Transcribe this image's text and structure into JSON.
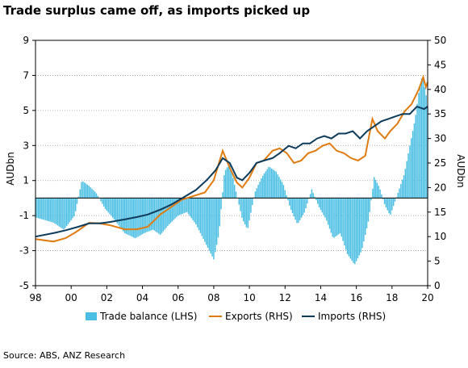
{
  "chart_data": {
    "type": "bar+line",
    "title": "Trade surplus came off, as imports picked up",
    "source": "Source: ABS, ANZ Research",
    "y_left": {
      "label": "AUDbn",
      "range": [
        -5,
        9
      ],
      "ticks": [
        9,
        7,
        5,
        3,
        1,
        -1,
        -3,
        -5
      ]
    },
    "y_right": {
      "label": "AUDbn",
      "range": [
        0,
        50
      ],
      "ticks": [
        50,
        45,
        40,
        35,
        30,
        25,
        20,
        15,
        10,
        5,
        0
      ]
    },
    "x": {
      "range": [
        1998,
        2020
      ],
      "ticks": [
        "98",
        "00",
        "02",
        "04",
        "06",
        "08",
        "10",
        "12",
        "14",
        "16",
        "18",
        "20"
      ]
    },
    "grid": true,
    "legend_position": "bottom",
    "colors": {
      "trade_balance": "#4BBFE3",
      "exports": "#E07B10",
      "imports": "#0D3B5C"
    },
    "series": [
      {
        "name": "Trade balance (LHS)",
        "type": "bar",
        "axis": "left",
        "points": [
          [
            1998.0,
            -1.1
          ],
          [
            1999.0,
            -1.4
          ],
          [
            1999.6,
            -1.8
          ],
          [
            2000.2,
            -1.0
          ],
          [
            2000.6,
            1.0
          ],
          [
            2001.0,
            0.7
          ],
          [
            2001.4,
            0.3
          ],
          [
            2001.9,
            -0.6
          ],
          [
            2002.4,
            -1.2
          ],
          [
            2003.0,
            -2.0
          ],
          [
            2003.6,
            -2.3
          ],
          [
            2004.1,
            -2.0
          ],
          [
            2004.6,
            -1.8
          ],
          [
            2005.0,
            -2.1
          ],
          [
            2005.5,
            -1.5
          ],
          [
            2006.0,
            -1.0
          ],
          [
            2006.5,
            -0.8
          ],
          [
            2007.0,
            -1.5
          ],
          [
            2007.5,
            -2.5
          ],
          [
            2008.0,
            -3.5
          ],
          [
            2008.3,
            -2.0
          ],
          [
            2008.6,
            1.5
          ],
          [
            2008.9,
            2.0
          ],
          [
            2009.2,
            0.6
          ],
          [
            2009.6,
            -1.2
          ],
          [
            2009.9,
            -1.8
          ],
          [
            2010.3,
            0.3
          ],
          [
            2010.7,
            1.2
          ],
          [
            2011.1,
            1.8
          ],
          [
            2011.5,
            1.5
          ],
          [
            2011.9,
            0.8
          ],
          [
            2012.3,
            -0.6
          ],
          [
            2012.7,
            -1.5
          ],
          [
            2013.1,
            -0.8
          ],
          [
            2013.5,
            0.5
          ],
          [
            2013.9,
            -0.5
          ],
          [
            2014.3,
            -1.2
          ],
          [
            2014.7,
            -2.3
          ],
          [
            2015.1,
            -2.0
          ],
          [
            2015.5,
            -3.2
          ],
          [
            2015.9,
            -3.8
          ],
          [
            2016.3,
            -3.0
          ],
          [
            2016.7,
            -1.2
          ],
          [
            2017.0,
            1.2
          ],
          [
            2017.3,
            0.6
          ],
          [
            2017.6,
            -0.4
          ],
          [
            2017.9,
            -1.0
          ],
          [
            2018.3,
            0.2
          ],
          [
            2018.7,
            1.4
          ],
          [
            2019.0,
            3.0
          ],
          [
            2019.3,
            4.5
          ],
          [
            2019.5,
            6.0
          ],
          [
            2019.7,
            7.0
          ],
          [
            2019.9,
            6.0
          ],
          [
            2020.0,
            5.2
          ]
        ]
      },
      {
        "name": "Exports (RHS)",
        "type": "line",
        "axis": "right",
        "points": [
          [
            1998.0,
            9.5
          ],
          [
            1999.0,
            9.0
          ],
          [
            1999.7,
            9.7
          ],
          [
            2000.3,
            11.0
          ],
          [
            2001.0,
            12.8
          ],
          [
            2001.6,
            12.7
          ],
          [
            2002.2,
            12.3
          ],
          [
            2003.0,
            11.5
          ],
          [
            2003.7,
            11.5
          ],
          [
            2004.3,
            12.0
          ],
          [
            2005.0,
            14.5
          ],
          [
            2005.6,
            16.0
          ],
          [
            2006.2,
            17.5
          ],
          [
            2006.8,
            18.2
          ],
          [
            2007.5,
            19.0
          ],
          [
            2008.0,
            21.5
          ],
          [
            2008.5,
            27.5
          ],
          [
            2008.9,
            24.0
          ],
          [
            2009.3,
            21.0
          ],
          [
            2009.6,
            20.0
          ],
          [
            2010.0,
            22.0
          ],
          [
            2010.4,
            25.0
          ],
          [
            2010.8,
            25.5
          ],
          [
            2011.3,
            27.5
          ],
          [
            2011.7,
            28.0
          ],
          [
            2012.1,
            27.0
          ],
          [
            2012.5,
            25.0
          ],
          [
            2012.9,
            25.5
          ],
          [
            2013.3,
            27.0
          ],
          [
            2013.7,
            27.5
          ],
          [
            2014.1,
            28.5
          ],
          [
            2014.5,
            29.0
          ],
          [
            2014.9,
            27.5
          ],
          [
            2015.3,
            27.0
          ],
          [
            2015.7,
            26.0
          ],
          [
            2016.1,
            25.5
          ],
          [
            2016.5,
            26.5
          ],
          [
            2016.9,
            34.0
          ],
          [
            2017.2,
            31.5
          ],
          [
            2017.6,
            30.0
          ],
          [
            2017.9,
            31.5
          ],
          [
            2018.3,
            33.0
          ],
          [
            2018.7,
            35.5
          ],
          [
            2019.1,
            37.0
          ],
          [
            2019.5,
            40.0
          ],
          [
            2019.75,
            42.5
          ],
          [
            2019.9,
            40.5
          ],
          [
            2020.0,
            41.5
          ]
        ]
      },
      {
        "name": "Imports (RHS)",
        "type": "line",
        "axis": "right",
        "points": [
          [
            1998.0,
            10.0
          ],
          [
            1999.0,
            10.7
          ],
          [
            1999.7,
            11.3
          ],
          [
            2000.4,
            12.0
          ],
          [
            2001.0,
            12.7
          ],
          [
            2001.6,
            12.7
          ],
          [
            2002.2,
            13.0
          ],
          [
            2003.0,
            13.5
          ],
          [
            2003.7,
            14.0
          ],
          [
            2004.3,
            14.5
          ],
          [
            2005.0,
            15.5
          ],
          [
            2005.6,
            16.5
          ],
          [
            2006.3,
            18.0
          ],
          [
            2007.0,
            19.5
          ],
          [
            2007.6,
            21.5
          ],
          [
            2008.1,
            23.5
          ],
          [
            2008.5,
            26.0
          ],
          [
            2008.9,
            25.0
          ],
          [
            2009.3,
            22.0
          ],
          [
            2009.6,
            21.5
          ],
          [
            2010.0,
            23.0
          ],
          [
            2010.4,
            25.0
          ],
          [
            2010.8,
            25.5
          ],
          [
            2011.3,
            26.0
          ],
          [
            2011.7,
            27.0
          ],
          [
            2012.2,
            28.5
          ],
          [
            2012.6,
            28.0
          ],
          [
            2013.0,
            29.0
          ],
          [
            2013.4,
            29.0
          ],
          [
            2013.8,
            30.0
          ],
          [
            2014.2,
            30.5
          ],
          [
            2014.6,
            30.0
          ],
          [
            2015.0,
            31.0
          ],
          [
            2015.4,
            31.0
          ],
          [
            2015.8,
            31.5
          ],
          [
            2016.2,
            30.0
          ],
          [
            2016.6,
            31.5
          ],
          [
            2017.0,
            32.5
          ],
          [
            2017.4,
            33.5
          ],
          [
            2017.8,
            34.0
          ],
          [
            2018.2,
            34.5
          ],
          [
            2018.6,
            35.0
          ],
          [
            2019.0,
            35.0
          ],
          [
            2019.4,
            36.5
          ],
          [
            2019.8,
            36.0
          ],
          [
            2020.0,
            36.5
          ]
        ]
      }
    ]
  }
}
